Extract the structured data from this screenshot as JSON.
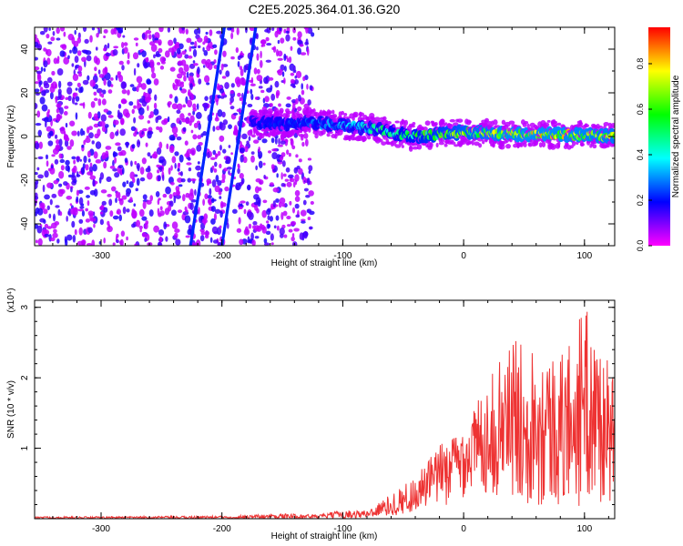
{
  "figure": {
    "title": "C2E5.2025.364.01.36.G20"
  },
  "chart_data": [
    {
      "type": "heatmap",
      "title": "C2E5.2025.364.01.36.G20",
      "xlabel": "Height of straight line (km)",
      "ylabel": "Frequency (Hz)",
      "xlim": [
        -355,
        125
      ],
      "ylim": [
        -50,
        50
      ],
      "xticks": [
        -300,
        -200,
        -100,
        0,
        100
      ],
      "yticks": [
        -40,
        -20,
        0,
        20,
        40
      ],
      "colorbar": {
        "label": "Normalized spectral amplitude",
        "range": [
          0.0,
          0.96
        ],
        "ticks": [
          0.0,
          0.2,
          0.4,
          0.6,
          0.8
        ],
        "colormap": "rainbow (magenta-blue-cyan-green-yellow-red)"
      },
      "features": [
        {
          "name": "scatter noise",
          "x_range": [
            -355,
            -125
          ],
          "y_range": [
            -50,
            50
          ],
          "amplitude": 0.15
        },
        {
          "name": "doppler track 1",
          "x": [
            -200,
            -172
          ],
          "y": [
            -50,
            50
          ],
          "amplitude": 0.22
        },
        {
          "name": "doppler track 2",
          "x": [
            -226,
            -198
          ],
          "y": [
            -50,
            50
          ],
          "amplitude": 0.22
        },
        {
          "name": "near-zero frequency band",
          "x": [
            -175,
            -120,
            -80,
            -40,
            0,
            40,
            80,
            125
          ],
          "y": [
            6,
            6,
            4,
            0,
            2,
            1,
            1,
            0
          ],
          "amplitude": [
            0.2,
            0.3,
            0.5,
            0.6,
            0.75,
            0.85,
            0.85,
            0.8
          ]
        }
      ]
    },
    {
      "type": "line",
      "title": "",
      "xlabel": "Height of straight line (km)",
      "ylabel": "SNR (10 * v/v)",
      "y_scale_label": "(x10⁴)",
      "xlim": [
        -355,
        125
      ],
      "ylim": [
        0,
        3.1
      ],
      "xticks": [
        -300,
        -200,
        -100,
        0,
        100
      ],
      "yticks": [
        1,
        2,
        3
      ],
      "color": "#ee3333",
      "envelope": {
        "x": [
          -355,
          -300,
          -200,
          -150,
          -120,
          -100,
          -80,
          -60,
          -40,
          -20,
          0,
          20,
          40,
          60,
          80,
          100,
          125
        ],
        "upper": [
          0.03,
          0.03,
          0.04,
          0.07,
          0.06,
          0.12,
          0.12,
          0.35,
          0.6,
          1.05,
          1.35,
          1.95,
          2.55,
          2.5,
          2.3,
          3.05,
          2.0
        ],
        "lower": [
          0.0,
          0.0,
          0.0,
          0.0,
          0.0,
          0.0,
          0.01,
          0.03,
          0.08,
          0.15,
          0.3,
          0.35,
          0.25,
          0.2,
          0.1,
          0.15,
          0.2
        ]
      }
    }
  ]
}
